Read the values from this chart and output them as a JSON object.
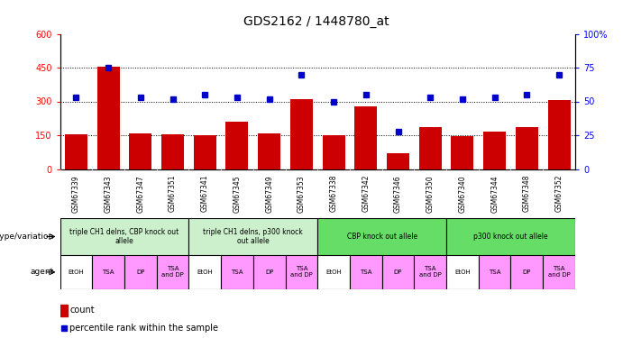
{
  "title": "GDS2162 / 1448780_at",
  "samples": [
    "GSM67339",
    "GSM67343",
    "GSM67347",
    "GSM67351",
    "GSM67341",
    "GSM67345",
    "GSM67349",
    "GSM67353",
    "GSM67338",
    "GSM67342",
    "GSM67346",
    "GSM67350",
    "GSM67340",
    "GSM67344",
    "GSM67348",
    "GSM67352"
  ],
  "counts": [
    155,
    455,
    160,
    155,
    150,
    210,
    160,
    310,
    150,
    280,
    70,
    185,
    145,
    165,
    185,
    305
  ],
  "percentiles": [
    53,
    75,
    53,
    52,
    55,
    53,
    52,
    70,
    50,
    55,
    28,
    53,
    52,
    53,
    55,
    70
  ],
  "genotype_groups": [
    {
      "label": "triple CH1 delns, CBP knock out\nallele",
      "start": 0,
      "end": 4,
      "color": "#ccf0cc"
    },
    {
      "label": "triple CH1 delns, p300 knock\nout allele",
      "start": 4,
      "end": 8,
      "color": "#ccf0cc"
    },
    {
      "label": "CBP knock out allele",
      "start": 8,
      "end": 12,
      "color": "#66dd66"
    },
    {
      "label": "p300 knock out allele",
      "start": 12,
      "end": 16,
      "color": "#66dd66"
    }
  ],
  "agent_labels": [
    "EtOH",
    "TSA",
    "DP",
    "TSA\nand DP",
    "EtOH",
    "TSA",
    "DP",
    "TSA\nand DP",
    "EtOH",
    "TSA",
    "DP",
    "TSA\nand DP",
    "EtOH",
    "TSA",
    "DP",
    "TSA\nand DP"
  ],
  "bar_color": "#CC0000",
  "dot_color": "#0000CC",
  "ylim_left": [
    0,
    600
  ],
  "ylim_right": [
    0,
    100
  ],
  "yticks_left": [
    0,
    150,
    300,
    450,
    600
  ],
  "yticks_right": [
    0,
    25,
    50,
    75,
    100
  ],
  "background_color": "#ffffff",
  "pink": "#FF99FF",
  "white": "#FFFFFF",
  "gray": "#C0C0C0",
  "title_fontsize": 10
}
